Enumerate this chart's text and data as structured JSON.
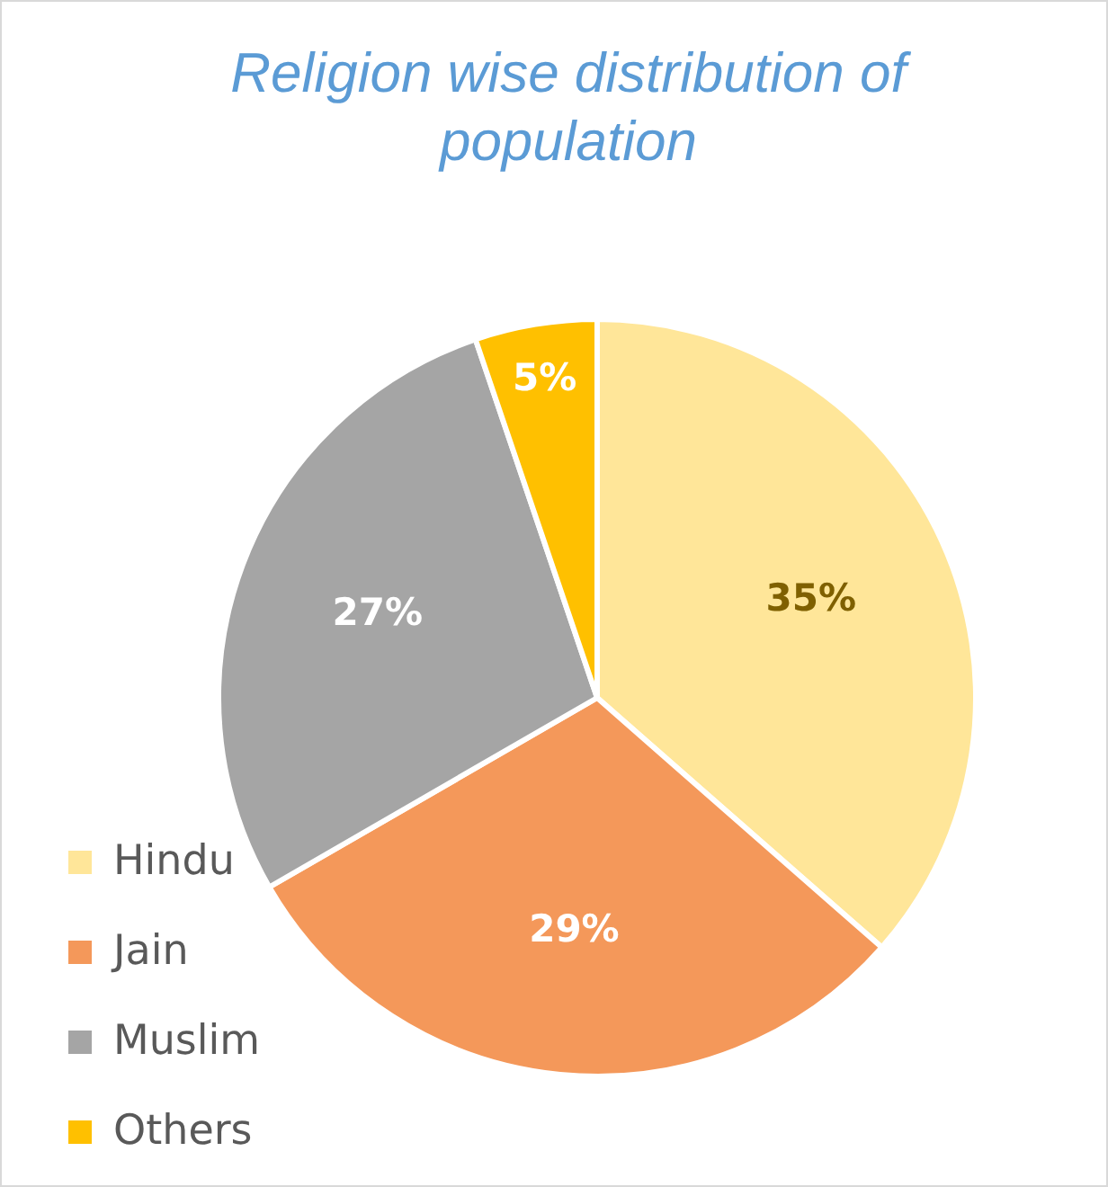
{
  "chart_data": {
    "type": "pie",
    "title": "Religion wise distribution of population",
    "categories": [
      "Hindu",
      "Jain",
      "Muslim",
      "Others"
    ],
    "values": [
      35,
      29,
      27,
      5
    ],
    "value_labels": [
      "35%",
      "29%",
      "27%",
      "5%"
    ],
    "colors": [
      "#ffe699",
      "#f4985a",
      "#a5a5a5",
      "#ffc000"
    ],
    "legend": "bottom left"
  }
}
